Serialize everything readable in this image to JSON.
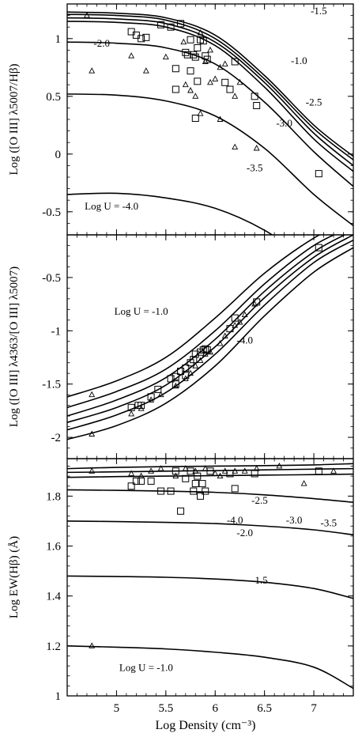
{
  "figure": {
    "xlabel": "Log Density (cm⁻³)"
  },
  "chart_data": [
    {
      "type": "line",
      "panel": "top",
      "xlabel": "Log Density (cm⁻³)",
      "ylabel": "Log ([O III] λ5007/Hβ)",
      "xlim": [
        4.5,
        7.4
      ],
      "ylim": [
        -0.7,
        1.3
      ],
      "xticks": [
        5,
        5.5,
        6,
        6.5,
        7
      ],
      "yticks": [
        -0.5,
        0,
        0.5,
        1
      ],
      "ytick_labels": [
        "-0.5",
        "0",
        "0.5",
        "1"
      ],
      "series": [
        {
          "name": "-1.5",
          "x": [
            4.5,
            5.0,
            5.5,
            6.0,
            6.5,
            7.0,
            7.4
          ],
          "y": [
            1.23,
            1.22,
            1.18,
            1.03,
            0.68,
            0.25,
            -0.02
          ]
        },
        {
          "name": "-2.0",
          "x": [
            4.5,
            5.0,
            5.5,
            6.0,
            6.5,
            7.0,
            7.4
          ],
          "y": [
            1.21,
            1.2,
            1.16,
            1.0,
            0.65,
            0.22,
            -0.05
          ]
        },
        {
          "name": "-1.0",
          "x": [
            4.5,
            5.0,
            5.5,
            6.0,
            6.5,
            7.0,
            7.4
          ],
          "y": [
            1.18,
            1.17,
            1.13,
            0.97,
            0.62,
            0.18,
            -0.1
          ]
        },
        {
          "name": "-2.5",
          "x": [
            4.5,
            5.0,
            5.5,
            6.0,
            6.5,
            7.0,
            7.4
          ],
          "y": [
            1.15,
            1.14,
            1.1,
            0.94,
            0.58,
            0.13,
            -0.15
          ]
        },
        {
          "name": "-3.0",
          "x": [
            4.5,
            5.0,
            5.5,
            6.0,
            6.5,
            7.0,
            7.4
          ],
          "y": [
            0.97,
            0.96,
            0.92,
            0.78,
            0.45,
            0.02,
            -0.28
          ]
        },
        {
          "name": "-3.5",
          "x": [
            4.5,
            5.0,
            5.5,
            6.0,
            6.5,
            7.0,
            7.4
          ],
          "y": [
            0.52,
            0.51,
            0.46,
            0.33,
            0.05,
            -0.35,
            -0.62
          ]
        },
        {
          "name": "Log U = -4.0",
          "x": [
            4.5,
            5.0,
            5.5,
            6.0,
            6.5,
            7.0,
            7.4
          ],
          "y": [
            -0.35,
            -0.34,
            -0.38,
            -0.47,
            -0.66,
            -0.95,
            -1.2
          ]
        }
      ],
      "points_squares": [
        [
          5.15,
          1.06
        ],
        [
          5.2,
          1.03
        ],
        [
          5.25,
          1.0
        ],
        [
          5.3,
          1.01
        ],
        [
          5.45,
          1.12
        ],
        [
          5.55,
          1.1
        ],
        [
          5.6,
          0.74
        ],
        [
          5.65,
          1.13
        ],
        [
          5.7,
          0.88
        ],
        [
          5.72,
          0.86
        ],
        [
          5.75,
          0.99
        ],
        [
          5.78,
          0.86
        ],
        [
          5.8,
          0.84
        ],
        [
          5.82,
          0.92
        ],
        [
          5.85,
          0.99
        ],
        [
          5.88,
          0.98
        ],
        [
          5.9,
          0.85
        ],
        [
          5.92,
          0.82
        ],
        [
          5.6,
          0.56
        ],
        [
          5.8,
          0.31
        ],
        [
          6.1,
          0.62
        ],
        [
          6.2,
          0.8
        ],
        [
          6.15,
          0.56
        ],
        [
          6.4,
          0.5
        ],
        [
          6.42,
          0.42
        ],
        [
          7.05,
          -0.17
        ],
        [
          5.75,
          0.72
        ],
        [
          5.82,
          0.63
        ]
      ],
      "points_triangles": [
        [
          4.75,
          0.72
        ],
        [
          4.7,
          1.2
        ],
        [
          5.15,
          0.85
        ],
        [
          5.3,
          0.72
        ],
        [
          5.5,
          0.84
        ],
        [
          5.7,
          0.6
        ],
        [
          5.75,
          0.55
        ],
        [
          5.8,
          0.5
        ],
        [
          5.85,
          0.35
        ],
        [
          5.9,
          0.8
        ],
        [
          5.95,
          0.62
        ],
        [
          6.0,
          0.65
        ],
        [
          6.05,
          0.75
        ],
        [
          6.1,
          0.78
        ],
        [
          6.2,
          0.5
        ],
        [
          6.25,
          0.62
        ],
        [
          6.2,
          0.06
        ],
        [
          6.05,
          0.3
        ],
        [
          6.42,
          0.05
        ],
        [
          5.95,
          0.9
        ],
        [
          5.68,
          0.97
        ],
        [
          5.85,
          1.05
        ]
      ],
      "annotations": [
        {
          "text": "-1.5",
          "x": 7.05,
          "y": 1.21
        },
        {
          "text": "-2.0",
          "x": 4.85,
          "y": 0.93
        },
        {
          "text": "-1.0",
          "x": 6.85,
          "y": 0.78
        },
        {
          "text": "-2.5",
          "x": 7.0,
          "y": 0.42
        },
        {
          "text": "-3.0",
          "x": 6.7,
          "y": 0.24
        },
        {
          "text": "-3.5",
          "x": 6.4,
          "y": -0.15
        },
        {
          "text": "Log U = -4.0",
          "x": 4.95,
          "y": -0.48
        }
      ]
    },
    {
      "type": "line",
      "panel": "middle",
      "xlabel": "Log Density (cm⁻³)",
      "ylabel": "Log ([O III] λ4363/[O III] λ5007)",
      "xlim": [
        4.5,
        7.4
      ],
      "ylim": [
        -2.2,
        -0.1
      ],
      "yticks": [
        -2,
        -1.5,
        -1,
        -0.5
      ],
      "ytick_labels": [
        "-2",
        "-1.5",
        "-1",
        "-0.5"
      ],
      "series": [
        {
          "name": "Log U = -1.0",
          "x": [
            4.5,
            5.0,
            5.5,
            6.0,
            6.5,
            7.0,
            7.4
          ],
          "y": [
            -1.62,
            -1.47,
            -1.25,
            -0.88,
            -0.46,
            -0.13,
            0.05
          ]
        },
        {
          "name": "",
          "x": [
            4.5,
            5.0,
            5.5,
            6.0,
            6.5,
            7.0,
            7.4
          ],
          "y": [
            -1.72,
            -1.57,
            -1.36,
            -1.0,
            -0.56,
            -0.2,
            -0.02
          ]
        },
        {
          "name": "",
          "x": [
            4.5,
            5.0,
            5.5,
            6.0,
            6.5,
            7.0,
            7.4
          ],
          "y": [
            -1.8,
            -1.65,
            -1.44,
            -1.08,
            -0.63,
            -0.26,
            -0.06
          ]
        },
        {
          "name": "",
          "x": [
            4.5,
            5.0,
            5.5,
            6.0,
            6.5,
            7.0,
            7.4
          ],
          "y": [
            -1.86,
            -1.72,
            -1.51,
            -1.15,
            -0.69,
            -0.31,
            -0.1
          ]
        },
        {
          "name": "",
          "x": [
            4.5,
            5.0,
            5.5,
            6.0,
            6.5,
            7.0,
            7.4
          ],
          "y": [
            -1.93,
            -1.79,
            -1.58,
            -1.22,
            -0.76,
            -0.36,
            -0.15
          ]
        },
        {
          "name": "-4.0",
          "x": [
            4.5,
            5.0,
            5.5,
            6.0,
            6.5,
            7.0,
            7.4
          ],
          "y": [
            -2.02,
            -1.89,
            -1.68,
            -1.33,
            -0.86,
            -0.45,
            -0.22
          ]
        }
      ],
      "points_squares": [
        [
          5.15,
          -1.72
        ],
        [
          5.22,
          -1.7
        ],
        [
          5.25,
          -1.7
        ],
        [
          5.35,
          -1.62
        ],
        [
          5.42,
          -1.55
        ],
        [
          5.55,
          -1.45
        ],
        [
          5.6,
          -1.43
        ],
        [
          5.65,
          -1.38
        ],
        [
          5.7,
          -1.35
        ],
        [
          5.75,
          -1.3
        ],
        [
          5.78,
          -1.27
        ],
        [
          5.8,
          -1.22
        ],
        [
          5.85,
          -1.2
        ],
        [
          5.88,
          -1.18
        ],
        [
          5.9,
          -1.17
        ],
        [
          5.92,
          -1.18
        ],
        [
          6.15,
          -0.98
        ],
        [
          6.2,
          -0.88
        ],
        [
          6.42,
          -0.73
        ],
        [
          7.05,
          -0.22
        ],
        [
          5.6,
          -1.5
        ],
        [
          5.7,
          -1.42
        ]
      ],
      "points_triangles": [
        [
          4.75,
          -1.6
        ],
        [
          4.75,
          -1.97
        ],
        [
          5.15,
          -1.78
        ],
        [
          5.25,
          -1.73
        ],
        [
          5.35,
          -1.65
        ],
        [
          5.45,
          -1.6
        ],
        [
          5.6,
          -1.52
        ],
        [
          5.7,
          -1.45
        ],
        [
          5.75,
          -1.4
        ],
        [
          5.8,
          -1.33
        ],
        [
          5.85,
          -1.28
        ],
        [
          5.9,
          -1.22
        ],
        [
          5.95,
          -1.2
        ],
        [
          6.05,
          -1.12
        ],
        [
          6.1,
          -1.05
        ],
        [
          6.2,
          -0.95
        ],
        [
          6.25,
          -0.92
        ],
        [
          6.3,
          -0.85
        ],
        [
          6.4,
          -0.75
        ]
      ],
      "annotations": [
        {
          "text": "Log U = -1.0",
          "x": 5.25,
          "y": -0.85
        },
        {
          "text": "-4.0",
          "x": 6.3,
          "y": -1.12
        }
      ]
    },
    {
      "type": "line",
      "panel": "bottom",
      "xlabel": "Log Density (cm⁻³)",
      "ylabel": "Log EW(Hβ) (Å)",
      "xlim": [
        4.5,
        7.4
      ],
      "ylim": [
        1.0,
        1.95
      ],
      "xticks": [
        5,
        5.5,
        6,
        6.5,
        7
      ],
      "xtick_labels": [
        "5",
        "5.5",
        "6",
        "6.5",
        "7"
      ],
      "yticks": [
        1.0,
        1.2,
        1.4,
        1.6,
        1.8
      ],
      "ytick_labels": [
        "1",
        "1.2",
        "1.4",
        "1.6",
        "1.8"
      ],
      "series": [
        {
          "name": "",
          "x": [
            4.5,
            5.0,
            5.5,
            6.0,
            6.5,
            7.0,
            7.4
          ],
          "y": [
            1.91,
            1.915,
            1.918,
            1.92,
            1.922,
            1.925,
            1.93
          ]
        },
        {
          "name": "",
          "x": [
            4.5,
            5.0,
            5.5,
            6.0,
            6.5,
            7.0,
            7.4
          ],
          "y": [
            1.895,
            1.897,
            1.9,
            1.902,
            1.905,
            1.908,
            1.91
          ]
        },
        {
          "name": "",
          "x": [
            4.5,
            5.0,
            5.5,
            6.0,
            6.5,
            7.0,
            7.4
          ],
          "y": [
            1.875,
            1.878,
            1.88,
            1.882,
            1.884,
            1.886,
            1.888
          ]
        },
        {
          "name": "-2.5",
          "x": [
            4.5,
            5.0,
            5.5,
            6.0,
            6.5,
            7.0,
            7.4
          ],
          "y": [
            1.825,
            1.823,
            1.82,
            1.815,
            1.805,
            1.79,
            1.775
          ]
        },
        {
          "name": "-2.0",
          "x": [
            4.5,
            5.0,
            5.5,
            6.0,
            6.5,
            7.0,
            7.4
          ],
          "y": [
            1.7,
            1.698,
            1.695,
            1.69,
            1.68,
            1.665,
            1.645
          ]
        },
        {
          "name": "-1.5",
          "x": [
            4.5,
            5.0,
            5.5,
            6.0,
            6.5,
            7.0,
            7.4
          ],
          "y": [
            1.48,
            1.478,
            1.475,
            1.468,
            1.455,
            1.43,
            1.39
          ]
        },
        {
          "name": "Log U = -1.0",
          "x": [
            4.5,
            5.0,
            5.5,
            6.0,
            6.5,
            7.0,
            7.4
          ],
          "y": [
            1.2,
            1.195,
            1.188,
            1.175,
            1.155,
            1.115,
            1.03
          ]
        }
      ],
      "points_squares": [
        [
          5.15,
          1.84
        ],
        [
          5.2,
          1.86
        ],
        [
          5.25,
          1.86
        ],
        [
          5.35,
          1.86
        ],
        [
          5.45,
          1.82
        ],
        [
          5.55,
          1.82
        ],
        [
          5.6,
          1.9
        ],
        [
          5.65,
          1.74
        ],
        [
          5.7,
          1.87
        ],
        [
          5.75,
          1.9
        ],
        [
          5.78,
          1.82
        ],
        [
          5.8,
          1.85
        ],
        [
          5.82,
          1.88
        ],
        [
          5.85,
          1.8
        ],
        [
          5.9,
          1.82
        ],
        [
          5.95,
          1.9
        ],
        [
          6.15,
          1.89
        ],
        [
          6.2,
          1.83
        ],
        [
          6.4,
          1.89
        ],
        [
          7.05,
          1.9
        ],
        [
          5.87,
          1.85
        ]
      ],
      "points_triangles": [
        [
          4.75,
          1.9
        ],
        [
          4.75,
          1.2
        ],
        [
          5.15,
          1.89
        ],
        [
          5.25,
          1.88
        ],
        [
          5.35,
          1.9
        ],
        [
          5.45,
          1.91
        ],
        [
          5.6,
          1.88
        ],
        [
          5.7,
          1.91
        ],
        [
          5.8,
          1.9
        ],
        [
          5.9,
          1.91
        ],
        [
          6.0,
          1.89
        ],
        [
          6.05,
          1.88
        ],
        [
          6.1,
          1.9
        ],
        [
          6.2,
          1.9
        ],
        [
          6.3,
          1.9
        ],
        [
          6.42,
          1.91
        ],
        [
          6.65,
          1.92
        ],
        [
          6.9,
          1.85
        ],
        [
          7.2,
          1.9
        ]
      ],
      "annotations": [
        {
          "text": "-2.5",
          "x": 6.45,
          "y": 1.77
        },
        {
          "text": "-2.0",
          "x": 6.3,
          "y": 1.64
        },
        {
          "text": "-4.0",
          "x": 6.2,
          "y": 1.69
        },
        {
          "text": "-3.0",
          "x": 6.8,
          "y": 1.69
        },
        {
          "text": "-3.5",
          "x": 7.15,
          "y": 1.68
        },
        {
          "text": "-1.5",
          "x": 6.45,
          "y": 1.45
        },
        {
          "text": "Log U = -1.0",
          "x": 5.3,
          "y": 1.1
        }
      ]
    }
  ]
}
